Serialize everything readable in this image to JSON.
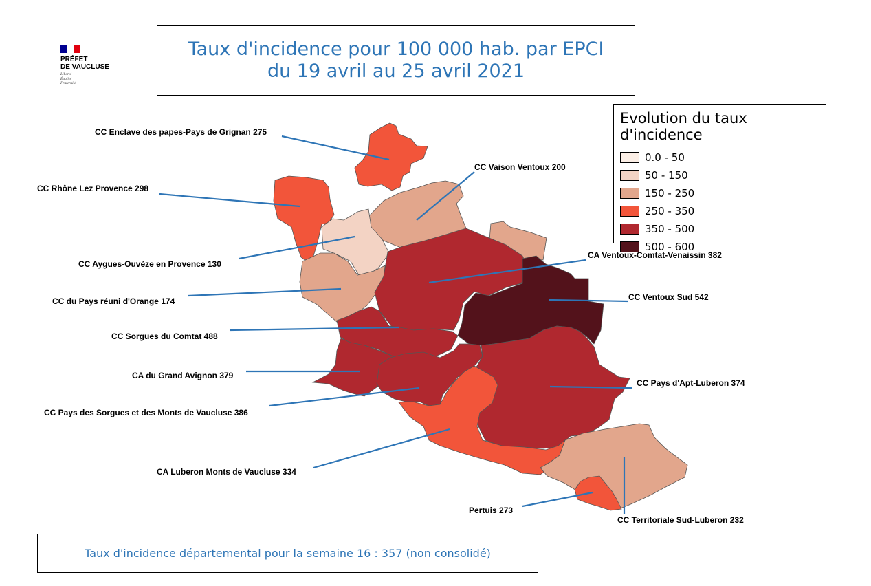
{
  "logo": {
    "org_line1": "PRÉFET",
    "org_line2": "DE VAUCLUSE",
    "motto1": "Liberté",
    "motto2": "Égalité",
    "motto3": "Fraternité",
    "flag_colors": [
      "#000091",
      "#ffffff",
      "#e1000f"
    ]
  },
  "title": {
    "line1": "Taux d'incidence pour 100 000 hab. par EPCI",
    "line2": "du 19  avril au 25 avril 2021"
  },
  "legend": {
    "title": "Evolution du taux d'incidence",
    "items": [
      {
        "label": "0.0 - 50",
        "color": "#fcefe6"
      },
      {
        "label": "50 - 150",
        "color": "#f3d3c4"
      },
      {
        "label": "150 - 250",
        "color": "#e2a68c"
      },
      {
        "label": "250 - 350",
        "color": "#f2553a"
      },
      {
        "label": "350 - 500",
        "color": "#b0282f"
      },
      {
        "label": "500 - 600",
        "color": "#53121b"
      }
    ]
  },
  "regions": [
    {
      "name": "CC Enclave des papes-Pays de Grignan",
      "value": "275",
      "color": "#f2553a"
    },
    {
      "name": "CC Vaison Ventoux",
      "value": "200",
      "color": "#e2a68c"
    },
    {
      "name": "CC Rhône Lez Provence",
      "value": "298",
      "color": "#f2553a"
    },
    {
      "name": "CC Aygues-Ouvèze en Provence",
      "value": "130",
      "color": "#f3d3c4"
    },
    {
      "name": "CA Ventoux-Comtat-Venaissin",
      "value": "382",
      "color": "#b0282f"
    },
    {
      "name": "CC du Pays réuni d'Orange",
      "value": "174",
      "color": "#e2a68c"
    },
    {
      "name": "CC Ventoux Sud",
      "value": "542",
      "color": "#53121b"
    },
    {
      "name": "CC Sorgues du Comtat",
      "value": "488",
      "color": "#b0282f"
    },
    {
      "name": "CA du Grand Avignon",
      "value": "379",
      "color": "#b0282f"
    },
    {
      "name": "CC Pays d'Apt-Luberon",
      "value": "374",
      "color": "#b0282f"
    },
    {
      "name": "CC Pays des Sorgues et des Monts de Vaucluse",
      "value": "386",
      "color": "#b0282f"
    },
    {
      "name": "CA Luberon Monts de Vaucluse",
      "value": "334",
      "color": "#f2553a"
    },
    {
      "name": "Pertuis",
      "value": "273",
      "color": "#f2553a"
    },
    {
      "name": "CC Territoriale Sud-Luberon",
      "value": "232",
      "color": "#e2a68c"
    }
  ],
  "footer": {
    "text": "Taux d'incidence départemental pour la semaine 16  :  357  (non consolidé)"
  }
}
